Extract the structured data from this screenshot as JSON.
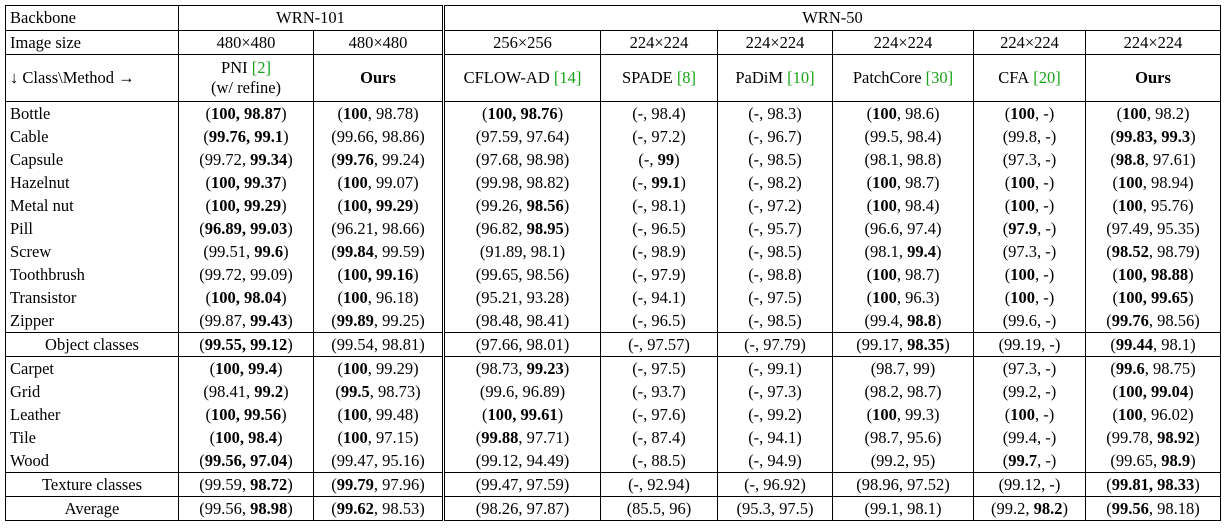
{
  "header": {
    "backbone_label": "Backbone",
    "backbones": [
      "WRN-101",
      "WRN-50"
    ],
    "image_size_label": "Image size",
    "image_sizes": [
      "480×480",
      "480×480",
      "256×256",
      "224×224",
      "224×224",
      "224×224",
      "224×224",
      "224×224"
    ],
    "class_method_label": "↓ Class\\Method →",
    "methods": [
      {
        "name": "PNI",
        "cite": "[2]",
        "note": "(w/ refine)"
      },
      {
        "name": "Ours"
      },
      {
        "name": "CFLOW-AD",
        "cite": "[14]"
      },
      {
        "name": "SPADE",
        "cite": "[8]"
      },
      {
        "name": "PaDiM",
        "cite": "[10]"
      },
      {
        "name": "PatchCore",
        "cite": "[30]"
      },
      {
        "name": "CFA",
        "cite": "[20]"
      },
      {
        "name": "Ours"
      }
    ]
  },
  "table": {
    "groups": [
      {
        "rows": [
          {
            "label": "Bottle",
            "cells": [
              [
                "(",
                {
                  "b": "100, 98.87"
                },
                ")"
              ],
              [
                "(",
                {
                  "b": "100"
                },
                ", 98.78)"
              ],
              [
                "(",
                {
                  "b": "100, 98.76"
                },
                ")"
              ],
              "(-, 98.4)",
              "(-, 98.3)",
              [
                "(",
                {
                  "b": "100"
                },
                ", 98.6)"
              ],
              [
                "(",
                {
                  "b": "100"
                },
                ", -)"
              ],
              [
                "(",
                {
                  "b": "100"
                },
                ", 98.2)"
              ]
            ]
          },
          {
            "label": "Cable",
            "cells": [
              [
                "(",
                {
                  "b": "99.76, 99.1"
                },
                ")"
              ],
              "(99.66, 98.86)",
              "(97.59, 97.64)",
              "(-, 97.2)",
              "(-, 96.7)",
              "(99.5, 98.4)",
              "(99.8, -)",
              [
                "(",
                {
                  "b": "99.83, 99.3"
                },
                ")"
              ]
            ]
          },
          {
            "label": "Capsule",
            "cells": [
              [
                "(99.72, ",
                {
                  "b": "99.34"
                },
                ")"
              ],
              [
                "(",
                {
                  "b": "99.76"
                },
                ", 99.24)"
              ],
              "(97.68, 98.98)",
              [
                "(-, ",
                {
                  "b": "99"
                },
                ")"
              ],
              "(-, 98.5)",
              "(98.1, 98.8)",
              "(97.3, -)",
              [
                "(",
                {
                  "b": "98.8"
                },
                ", 97.61)"
              ]
            ]
          },
          {
            "label": "Hazelnut",
            "cells": [
              [
                "(",
                {
                  "b": "100, 99.37"
                },
                ")"
              ],
              [
                "(",
                {
                  "b": "100"
                },
                ", 99.07)"
              ],
              "(99.98, 98.82)",
              [
                "(-, ",
                {
                  "b": "99.1"
                },
                ")"
              ],
              "(-, 98.2)",
              [
                "(",
                {
                  "b": "100"
                },
                ", 98.7)"
              ],
              [
                "(",
                {
                  "b": "100"
                },
                ", -)"
              ],
              [
                "(",
                {
                  "b": "100"
                },
                ", 98.94)"
              ]
            ]
          },
          {
            "label": "Metal nut",
            "cells": [
              [
                "(",
                {
                  "b": "100, 99.29"
                },
                ")"
              ],
              [
                "(",
                {
                  "b": "100, 99.29"
                },
                ")"
              ],
              [
                "(99.26, ",
                {
                  "b": "98.56"
                },
                ")"
              ],
              "(-, 98.1)",
              "(-, 97.2)",
              [
                "(",
                {
                  "b": "100"
                },
                ", 98.4)"
              ],
              [
                "(",
                {
                  "b": "100"
                },
                ", -)"
              ],
              [
                "(",
                {
                  "b": "100"
                },
                ", 95.76)"
              ]
            ]
          },
          {
            "label": "Pill",
            "cells": [
              [
                "(",
                {
                  "b": "96.89, 99.03"
                },
                ")"
              ],
              "(96.21, 98.66)",
              [
                "(96.82, ",
                {
                  "b": "98.95"
                },
                ")"
              ],
              "(-, 96.5)",
              "(-, 95.7)",
              "(96.6, 97.4)",
              [
                "(",
                {
                  "b": "97.9"
                },
                ", -)"
              ],
              "(97.49, 95.35)"
            ]
          },
          {
            "label": "Screw",
            "cells": [
              [
                "(99.51, ",
                {
                  "b": "99.6"
                },
                ")"
              ],
              [
                "(",
                {
                  "b": "99.84"
                },
                ", 99.59)"
              ],
              "(91.89, 98.1)",
              "(-, 98.9)",
              "(-, 98.5)",
              [
                "(98.1, ",
                {
                  "b": "99.4"
                },
                ")"
              ],
              "(97.3, -)",
              [
                "(",
                {
                  "b": "98.52"
                },
                ", 98.79)"
              ]
            ]
          },
          {
            "label": "Toothbrush",
            "cells": [
              "(99.72, 99.09)",
              [
                "(",
                {
                  "b": "100, 99.16"
                },
                ")"
              ],
              "(99.65, 98.56)",
              "(-, 97.9)",
              "(-, 98.8)",
              [
                "(",
                {
                  "b": "100"
                },
                ", 98.7)"
              ],
              [
                "(",
                {
                  "b": "100"
                },
                ", -)"
              ],
              [
                "(",
                {
                  "b": "100, 98.88"
                },
                ")"
              ]
            ]
          },
          {
            "label": "Transistor",
            "cells": [
              [
                "(",
                {
                  "b": "100, 98.04"
                },
                ")"
              ],
              [
                "(",
                {
                  "b": "100"
                },
                ", 96.18)"
              ],
              "(95.21, 93.28)",
              "(-, 94.1)",
              "(-, 97.5)",
              [
                "(",
                {
                  "b": "100"
                },
                ", 96.3)"
              ],
              [
                "(",
                {
                  "b": "100"
                },
                ", -)"
              ],
              [
                "(",
                {
                  "b": "100, 99.65"
                },
                ")"
              ]
            ]
          },
          {
            "label": "Zipper",
            "cells": [
              [
                "(99.87, ",
                {
                  "b": "99.43"
                },
                ")"
              ],
              [
                "(",
                {
                  "b": "99.89"
                },
                ", 99.25)"
              ],
              "(98.48, 98.41)",
              "(-, 96.5)",
              "(-, 98.5)",
              [
                "(99.4, ",
                {
                  "b": "98.8"
                },
                ")"
              ],
              "(99.6, -)",
              [
                "(",
                {
                  "b": "99.76"
                },
                ", 98.56)"
              ]
            ]
          }
        ],
        "summary": {
          "label": "Object classes",
          "cells": [
            [
              "(",
              {
                "b": "99.55, 99.12"
              },
              ")"
            ],
            "(99.54, 98.81)",
            "(97.66, 98.01)",
            "(-, 97.57)",
            "(-, 97.79)",
            [
              "(99.17, ",
              {
                "b": "98.35"
              },
              ")"
            ],
            "(99.19, -)",
            [
              "(",
              {
                "b": "99.44"
              },
              ", 98.1)"
            ]
          ]
        }
      },
      {
        "rows": [
          {
            "label": "Carpet",
            "cells": [
              [
                "(",
                {
                  "b": "100, 99.4"
                },
                ")"
              ],
              [
                "(",
                {
                  "b": "100"
                },
                ", 99.29)"
              ],
              [
                "(98.73, ",
                {
                  "b": "99.23"
                },
                ")"
              ],
              "(-, 97.5)",
              "(-, 99.1)",
              "(98.7, 99)",
              "(97.3, -)",
              [
                "(",
                {
                  "b": "99.6"
                },
                ", 98.75)"
              ]
            ]
          },
          {
            "label": "Grid",
            "cells": [
              [
                "(98.41, ",
                {
                  "b": "99.2"
                },
                ")"
              ],
              [
                "(",
                {
                  "b": "99.5"
                },
                ", 98.73)"
              ],
              "(99.6, 96.89)",
              "(-, 93.7)",
              "(-, 97.3)",
              "(98.2, 98.7)",
              "(99.2, -)",
              [
                "(",
                {
                  "b": "100, 99.04"
                },
                ")"
              ]
            ]
          },
          {
            "label": "Leather",
            "cells": [
              [
                "(",
                {
                  "b": "100, 99.56"
                },
                ")"
              ],
              [
                "(",
                {
                  "b": "100"
                },
                ", 99.48)"
              ],
              [
                "(",
                {
                  "b": "100, 99.61"
                },
                ")"
              ],
              "(-, 97.6)",
              "(-, 99.2)",
              [
                "(",
                {
                  "b": "100"
                },
                ", 99.3)"
              ],
              [
                "(",
                {
                  "b": "100"
                },
                ", -)"
              ],
              [
                "(",
                {
                  "b": "100"
                },
                ", 96.02)"
              ]
            ]
          },
          {
            "label": "Tile",
            "cells": [
              [
                "(",
                {
                  "b": "100, 98.4"
                },
                ")"
              ],
              [
                "(",
                {
                  "b": "100"
                },
                ", 97.15)"
              ],
              [
                "(",
                {
                  "b": "99.88"
                },
                ", 97.71)"
              ],
              "(-, 87.4)",
              "(-, 94.1)",
              "(98.7, 95.6)",
              "(99.4, -)",
              [
                "(99.78, ",
                {
                  "b": "98.92"
                },
                ")"
              ]
            ]
          },
          {
            "label": "Wood",
            "cells": [
              [
                "(",
                {
                  "b": "99.56, 97.04"
                },
                ")"
              ],
              "(99.47, 95.16)",
              "(99.12, 94.49)",
              "(-, 88.5)",
              "(-, 94.9)",
              "(99.2, 95)",
              [
                "(",
                {
                  "b": "99.7"
                },
                ", -)"
              ],
              [
                "(99.65, ",
                {
                  "b": "98.9"
                },
                ")"
              ]
            ]
          }
        ],
        "summary": {
          "label": "Texture classes",
          "cells": [
            [
              "(99.59, ",
              {
                "b": "98.72"
              },
              ")"
            ],
            [
              "(",
              {
                "b": "99.79"
              },
              ", 97.96)"
            ],
            "(99.47, 97.59)",
            "(-, 92.94)",
            "(-, 96.92)",
            "(98.96, 97.52)",
            "(99.12, -)",
            [
              "(",
              {
                "b": "99.81, 98.33"
              },
              ")"
            ]
          ]
        }
      }
    ],
    "average": {
      "label": "Average",
      "cells": [
        [
          "(99.56, ",
          {
            "b": "98.98"
          },
          ")"
        ],
        [
          "(",
          {
            "b": "99.62"
          },
          ", 98.53)"
        ],
        "(98.26, 97.87)",
        "(85.5, 96)",
        "(95.3, 97.5)",
        "(99.1, 98.1)",
        [
          "(99.2, ",
          {
            "b": "98.2"
          },
          ")"
        ],
        [
          "(",
          {
            "b": "99.56"
          },
          ", 98.18)"
        ]
      ]
    }
  }
}
